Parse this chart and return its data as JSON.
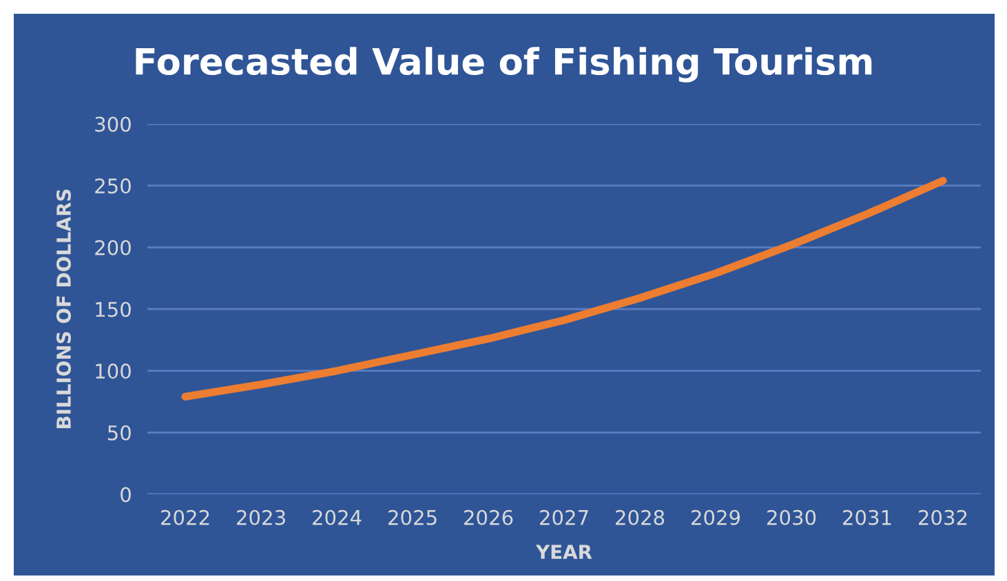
{
  "chart_data": {
    "type": "line",
    "title": "Forecasted Value of Fishing Tourism",
    "xlabel": "YEAR",
    "ylabel": "BILLIONS OF DOLLARS",
    "categories": [
      "2022",
      "2023",
      "2024",
      "2025",
      "2026",
      "2027",
      "2028",
      "2029",
      "2030",
      "2031",
      "2032"
    ],
    "series": [
      {
        "color": "#ed7d31",
        "values": [
          79,
          89,
          100,
          113,
          126,
          141,
          159,
          179,
          202,
          227,
          254
        ]
      }
    ],
    "ylim": [
      0,
      300
    ],
    "yticks": [
      0,
      50,
      100,
      150,
      200,
      250,
      300
    ],
    "grid": "y",
    "marker": "none",
    "line_style": "solid"
  }
}
